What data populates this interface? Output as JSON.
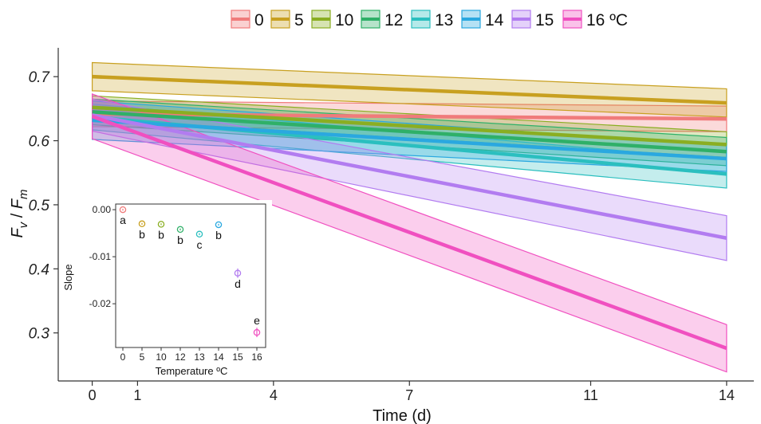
{
  "chart_data": {
    "main": {
      "type": "line",
      "ylabel": {
        "main": "F",
        "sub1": "v",
        "sep": " / ",
        "main2": "F",
        "sub2": "m"
      },
      "xlabel": "Time (d)",
      "xticks": [
        0,
        1,
        4,
        7,
        11,
        14
      ],
      "yticks": [
        0.3,
        0.4,
        0.5,
        0.6,
        0.7
      ],
      "yticklabels": [
        "0.3",
        "0.4",
        "0.5",
        "0.6",
        "0.7"
      ],
      "xlim": [
        -0.75,
        14.6
      ],
      "ylim": [
        0.225,
        0.745
      ],
      "legend_position": "top",
      "series": [
        {
          "name": "0",
          "color": "#F07B7B",
          "y0": 0.642,
          "y14": 0.634,
          "ci0": 0.02,
          "ci14": 0.02
        },
        {
          "name": "5",
          "color": "#C8A020",
          "y0": 0.7,
          "y14": 0.659,
          "ci0": 0.022,
          "ci14": 0.022
        },
        {
          "name": "10",
          "color": "#8AAE22",
          "y0": 0.652,
          "y14": 0.594,
          "ci0": 0.018,
          "ci14": 0.02
        },
        {
          "name": "12",
          "color": "#2FB068",
          "y0": 0.645,
          "y14": 0.583,
          "ci0": 0.02,
          "ci14": 0.022
        },
        {
          "name": "13",
          "color": "#2BBFBF",
          "y0": 0.637,
          "y14": 0.548,
          "ci0": 0.02,
          "ci14": 0.022
        },
        {
          "name": "14",
          "color": "#2AA8E0",
          "y0": 0.632,
          "y14": 0.572,
          "ci0": 0.03,
          "ci14": 0.02
        },
        {
          "name": "15",
          "color": "#B27CF0",
          "y0": 0.64,
          "y14": 0.448,
          "ci0": 0.025,
          "ci14": 0.035
        },
        {
          "name": "16 ºC",
          "color": "#F050C0",
          "y0": 0.638,
          "y14": 0.276,
          "ci0": 0.035,
          "ci14": 0.037
        }
      ]
    },
    "inset": {
      "type": "scatter",
      "xlabel": "Temperature ºC",
      "ylabel": "Slope",
      "categories": [
        "0",
        "5",
        "10",
        "12",
        "13",
        "14",
        "15",
        "16"
      ],
      "yticks": [
        0.0,
        -0.01,
        -0.02
      ],
      "yticklabels": [
        "0.00",
        "-0.01",
        "-0.02"
      ],
      "ylim": [
        -0.0293,
        0.0012
      ],
      "points": [
        {
          "x": "0",
          "value": -0.0,
          "err": 0.0002,
          "letter": "a",
          "color": "#F07B7B"
        },
        {
          "x": "5",
          "value": -0.003,
          "err": 0.0002,
          "letter": "b",
          "color": "#C8A020"
        },
        {
          "x": "10",
          "value": -0.0031,
          "err": 0.0002,
          "letter": "b",
          "color": "#8AAE22"
        },
        {
          "x": "12",
          "value": -0.0042,
          "err": 0.0002,
          "letter": "b",
          "color": "#2FB068"
        },
        {
          "x": "13",
          "value": -0.0052,
          "err": 0.0002,
          "letter": "c",
          "color": "#2BBFBF"
        },
        {
          "x": "14",
          "value": -0.0032,
          "err": 0.0002,
          "letter": "b",
          "color": "#2AA8E0"
        },
        {
          "x": "15",
          "value": -0.0135,
          "err": 0.001,
          "letter": "d",
          "color": "#B27CF0"
        },
        {
          "x": "16",
          "value": -0.0261,
          "err": 0.001,
          "letter": "e",
          "color": "#F050C0"
        }
      ]
    }
  }
}
